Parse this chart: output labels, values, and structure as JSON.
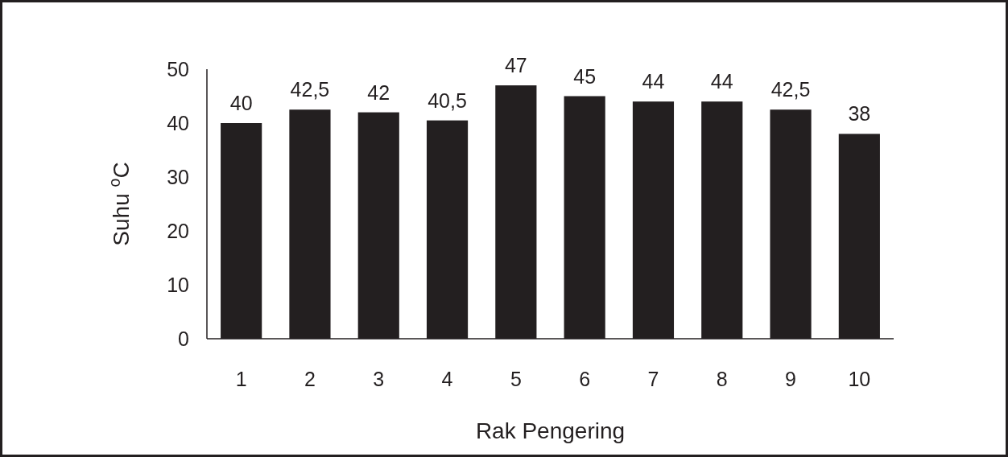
{
  "chart_data": {
    "type": "bar",
    "xlabel": "Rak Pengering",
    "ylabel": "Suhu $^{o}$C",
    "categories": [
      "1",
      "2",
      "3",
      "4",
      "5",
      "6",
      "7",
      "8",
      "9",
      "10"
    ],
    "values": [
      40,
      42.5,
      42,
      40.5,
      47,
      45,
      44,
      44,
      42.5,
      38
    ],
    "value_labels": [
      "40",
      "42,5",
      "42",
      "40,5",
      "47",
      "45",
      "44",
      "44",
      "42,5",
      "38"
    ],
    "color": "#231f20",
    "ylim": [
      0,
      50
    ],
    "yticks": [
      0,
      10,
      20,
      30,
      40,
      50
    ],
    "grid": false
  }
}
